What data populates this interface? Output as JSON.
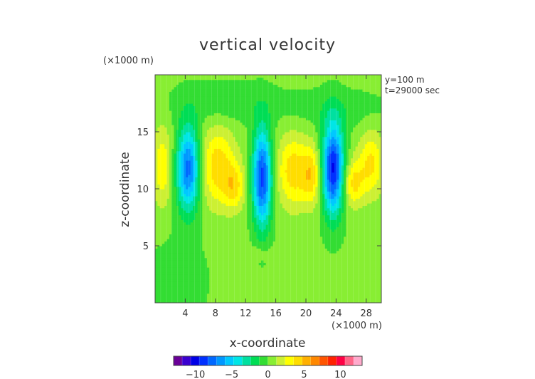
{
  "chart_data": {
    "type": "heatmap",
    "title": "vertical velocity",
    "xlabel": "x-coordinate",
    "ylabel": "z-coordinate",
    "x_unit": "(×1000 m)",
    "y_unit": "(×1000 m)",
    "annotations": [
      "y=100 m",
      "t=29000 sec"
    ],
    "xlim": [
      0,
      30
    ],
    "ylim": [
      0,
      20
    ],
    "x_ticks": [
      4,
      8,
      12,
      16,
      20,
      24,
      28
    ],
    "y_ticks": [
      5,
      10,
      15
    ],
    "colorbar": {
      "range": [
        -13,
        13
      ],
      "ticks": [
        -10,
        -5,
        0,
        5,
        10
      ],
      "colors": [
        "#6a0098",
        "#3a00d0",
        "#0000e6",
        "#0030ff",
        "#0068ff",
        "#0098ff",
        "#00c8ff",
        "#00e6e6",
        "#00e0a0",
        "#00dd55",
        "#33dd33",
        "#88ee33",
        "#ccf033",
        "#ffff00",
        "#ffdd00",
        "#ffb000",
        "#ff8800",
        "#ff5500",
        "#ff2200",
        "#ff0044",
        "#ff6688",
        "#ffaacc"
      ]
    },
    "background_value": 0.3,
    "field_cells": [
      {
        "x": 1.0,
        "z": 12.0,
        "value": 3,
        "sx": 0.9,
        "sz": 2.5
      },
      {
        "x": 4.4,
        "z": 11.8,
        "value": -8,
        "sx": 1.1,
        "sz": 2.6
      },
      {
        "x": 8.3,
        "z": 12.0,
        "value": 4,
        "sx": 1.7,
        "sz": 2.4
      },
      {
        "x": 10.5,
        "z": 10.2,
        "value": 3,
        "sx": 1.0,
        "sz": 1.4
      },
      {
        "x": 14.2,
        "z": 11.0,
        "value": -9,
        "sx": 0.9,
        "sz": 3.0
      },
      {
        "x": 18.3,
        "z": 11.6,
        "value": 4,
        "sx": 1.5,
        "sz": 2.2
      },
      {
        "x": 20.8,
        "z": 11.2,
        "value": 3.5,
        "sx": 0.9,
        "sz": 1.8
      },
      {
        "x": 23.6,
        "z": 11.8,
        "value": -10,
        "sx": 1.0,
        "sz": 2.8
      },
      {
        "x": 26.2,
        "z": 10.5,
        "value": 3.5,
        "sx": 1.0,
        "sz": 1.4
      },
      {
        "x": 28.6,
        "z": 12.2,
        "value": 3.5,
        "sx": 1.2,
        "sz": 2.0
      },
      {
        "x": 13.7,
        "z": 4.4,
        "value": 0.9,
        "sx": 1.2,
        "sz": 0.4
      },
      {
        "x": 9.0,
        "z": 17.5,
        "value": -1.2,
        "sx": 5.0,
        "sz": 1.3
      },
      {
        "x": 24.0,
        "z": 17.0,
        "value": -1.0,
        "sx": 5.0,
        "sz": 1.2
      },
      {
        "x": 3.0,
        "z": 2.0,
        "value": -0.8,
        "sx": 3.0,
        "sz": 3.0
      }
    ]
  }
}
